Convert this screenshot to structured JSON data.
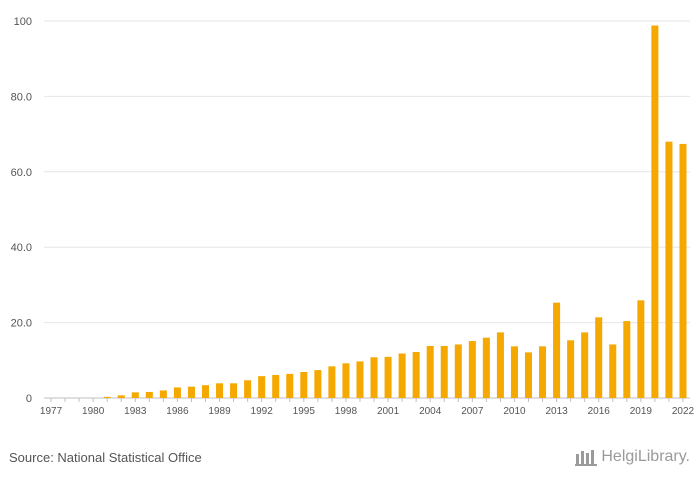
{
  "chart_data": {
    "type": "bar",
    "title": "",
    "xlabel": "",
    "ylabel": "",
    "ylim": [
      0,
      100
    ],
    "yticks": [
      "0",
      "20.0",
      "40.0",
      "60.0",
      "80.0",
      "100"
    ],
    "ytick_values": [
      0,
      20,
      40,
      60,
      80,
      100
    ],
    "xtick_labels": [
      "1977",
      "1980",
      "1983",
      "1986",
      "1989",
      "1992",
      "1995",
      "1998",
      "2001",
      "2004",
      "2007",
      "2010",
      "2013",
      "2016",
      "2019",
      "2022"
    ],
    "grid": true,
    "legend": "none",
    "bar_color": "#F5A800",
    "categories": [
      "1977",
      "1978",
      "1979",
      "1980",
      "1981",
      "1982",
      "1983",
      "1984",
      "1985",
      "1986",
      "1987",
      "1988",
      "1989",
      "1990",
      "1991",
      "1992",
      "1993",
      "1994",
      "1995",
      "1996",
      "1997",
      "1998",
      "1999",
      "2000",
      "2001",
      "2002",
      "2003",
      "2004",
      "2005",
      "2006",
      "2007",
      "2008",
      "2009",
      "2010",
      "2011",
      "2012",
      "2013",
      "2014",
      "2015",
      "2016",
      "2017",
      "2018",
      "2019",
      "2020",
      "2021",
      "2022"
    ],
    "values": [
      0,
      0,
      0,
      0,
      0.3,
      0.7,
      1.5,
      1.6,
      2.0,
      2.8,
      3.0,
      3.4,
      3.9,
      3.9,
      4.7,
      5.8,
      6.1,
      6.4,
      6.9,
      7.4,
      8.4,
      9.2,
      9.7,
      10.8,
      10.9,
      11.8,
      12.2,
      13.8,
      13.8,
      14.2,
      15.1,
      16.0,
      17.4,
      13.7,
      12.1,
      13.7,
      25.3,
      15.3,
      17.4,
      21.4,
      14.2,
      20.4,
      25.9,
      98.8,
      68.0,
      67.4
    ]
  },
  "footer": {
    "source": "Source: National Statistical Office",
    "brand": "HelgiLibrary."
  }
}
